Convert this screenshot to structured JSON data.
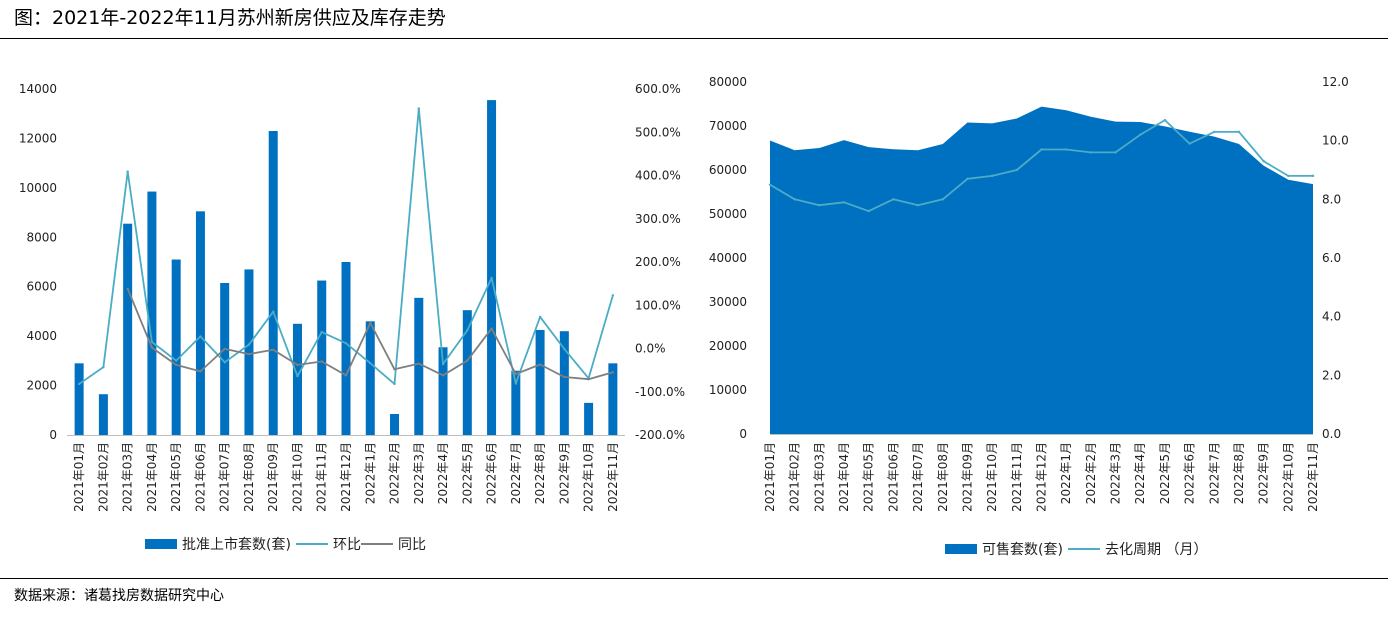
{
  "title": "图：2021年-2022年11月苏州新房供应及库存走势",
  "source": "数据来源：诸葛找房数据研究中心",
  "colors": {
    "bar": "#0070C0",
    "ring": "#4BACC6",
    "yoy": "#7F7F7F",
    "area": "#0070C0",
    "cycle": "#4BACC6"
  },
  "chart_data": [
    {
      "type": "bar",
      "categories": [
        "2021年01月",
        "2021年02月",
        "2021年03月",
        "2021年04月",
        "2021年05月",
        "2021年06月",
        "2021年07月",
        "2021年08月",
        "2021年09月",
        "2021年10月",
        "2021年11月",
        "2021年12月",
        "2022年1月",
        "2022年2月",
        "2022年3月",
        "2022年4月",
        "2022年5月",
        "2022年6月",
        "2022年7月",
        "2022年8月",
        "2022年9月",
        "2022年10月",
        "2022年11月"
      ],
      "series": [
        {
          "name": "批准上市套数(套)",
          "kind": "bar",
          "axis": "left",
          "values": [
            2900,
            1650,
            8550,
            9850,
            7100,
            9050,
            6150,
            6700,
            12300,
            4500,
            6250,
            7000,
            4600,
            850,
            5550,
            3550,
            5050,
            13550,
            2600,
            4250,
            4200,
            1300,
            2900
          ]
        },
        {
          "name": "环比",
          "kind": "line",
          "axis": "right",
          "values": [
            -82,
            -43,
            409,
            15,
            -28,
            28,
            -32,
            9,
            85,
            -64,
            38,
            12,
            -34,
            -82,
            555,
            -36,
            42,
            163,
            -81,
            73,
            -1,
            -69,
            123
          ]
        },
        {
          "name": "同比",
          "kind": "line",
          "axis": "right",
          "values": [
            null,
            null,
            138,
            2,
            -38,
            -53,
            -1,
            -13,
            -3,
            -38,
            -30,
            -62,
            59,
            -48,
            -35,
            -62,
            -28,
            46,
            -59,
            -37,
            -66,
            -71,
            -55
          ]
        }
      ],
      "yticks_left": [
        "0",
        "2000",
        "4000",
        "6000",
        "8000",
        "10000",
        "12000",
        "14000"
      ],
      "ylim_left": [
        0,
        14000
      ],
      "yticks_right": [
        "-200.0%",
        "-100.0%",
        "0.0%",
        "100.0%",
        "200.0%",
        "300.0%",
        "400.0%",
        "500.0%",
        "600.0%"
      ],
      "ylim_right": [
        -200,
        600
      ],
      "legend": [
        "批准上市套数(套)",
        "环比",
        "同比"
      ],
      "legend_position": "bottom",
      "grid": false
    },
    {
      "type": "area",
      "categories": [
        "2021年01月",
        "2021年02月",
        "2021年03月",
        "2021年04月",
        "2021年05月",
        "2021年06月",
        "2021年07月",
        "2021年08月",
        "2021年09月",
        "2021年10月",
        "2021年11月",
        "2021年12月",
        "2022年1月",
        "2022年2月",
        "2022年3月",
        "2022年4月",
        "2022年5月",
        "2022年6月",
        "2022年7月",
        "2022年8月",
        "2022年9月",
        "2022年10月",
        "2022年11月"
      ],
      "series": [
        {
          "name": "可售套数(套)",
          "kind": "area",
          "axis": "left",
          "values": [
            66700,
            64500,
            65000,
            66800,
            65200,
            64700,
            64500,
            65900,
            70800,
            70600,
            71700,
            74400,
            73600,
            72100,
            71000,
            70900,
            69900,
            68700,
            67600,
            65900,
            61000,
            57800,
            56800
          ]
        },
        {
          "name": "去化周期 （月）",
          "kind": "line",
          "axis": "right",
          "values": [
            8.5,
            8.0,
            7.8,
            7.9,
            7.6,
            8.0,
            7.8,
            8.0,
            8.7,
            8.8,
            9.0,
            9.7,
            9.7,
            9.6,
            9.6,
            10.2,
            10.7,
            9.9,
            10.3,
            10.3,
            9.3,
            8.8,
            8.8
          ]
        }
      ],
      "yticks_left": [
        "0",
        "10000",
        "20000",
        "30000",
        "40000",
        "50000",
        "60000",
        "70000",
        "80000"
      ],
      "ylim_left": [
        0,
        80000
      ],
      "yticks_right": [
        "0.0",
        "2.0",
        "4.0",
        "6.0",
        "8.0",
        "10.0",
        "12.0"
      ],
      "ylim_right": [
        0,
        12
      ],
      "legend": [
        "可售套数(套)",
        "去化周期 （月）"
      ],
      "legend_position": "bottom",
      "grid": false
    }
  ]
}
